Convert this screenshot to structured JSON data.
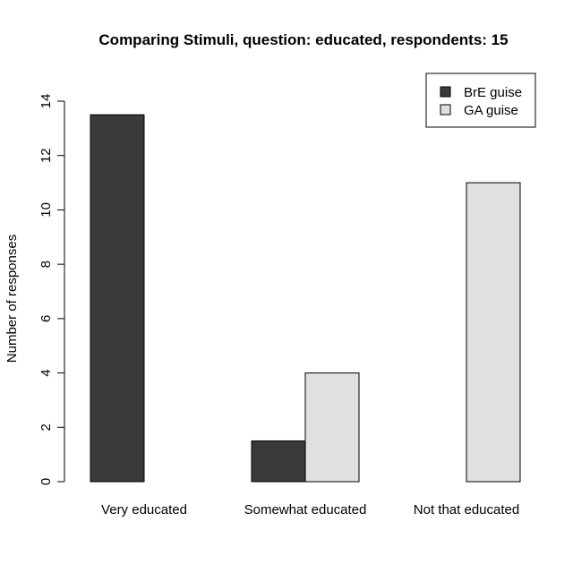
{
  "chart_data": {
    "type": "bar",
    "title": "Comparing Stimuli, question: educated, respondents: 15",
    "xlabel": "",
    "ylabel": "Number of responses",
    "categories": [
      "Very educated",
      "Somewhat educated",
      "Not that educated"
    ],
    "series": [
      {
        "name": "BrE guise",
        "values": [
          13.5,
          1.5,
          0
        ],
        "color": "#3a3a3a"
      },
      {
        "name": "GA guise",
        "values": [
          0,
          4,
          11
        ],
        "color": "#e0e0e0"
      }
    ],
    "ylim": [
      0,
      14
    ],
    "yticks": [
      0,
      2,
      4,
      6,
      8,
      10,
      12,
      14
    ],
    "grid": false,
    "legend_position": "top-right"
  }
}
